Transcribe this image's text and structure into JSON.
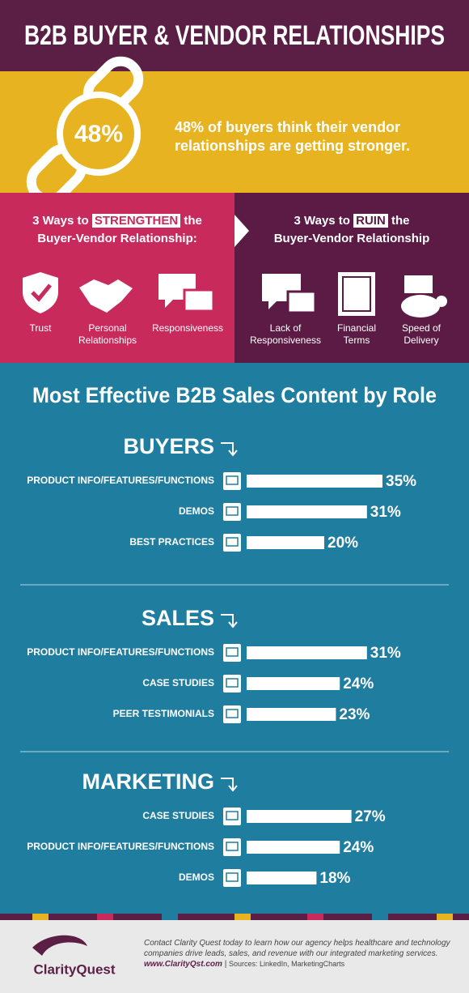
{
  "header": {
    "title": "B2B BUYER & VENDOR RELATIONSHIPS"
  },
  "stat": {
    "value": "48%",
    "text": "48% of buyers think their vendor relationships are getting stronger."
  },
  "strengthen": {
    "title_before": "3 Ways to",
    "title_highlight": "STRENGTHEN",
    "title_after": "the",
    "subtitle": "Buyer-Vendor Relationship:",
    "items": [
      "Trust",
      "Personal Relationships",
      "Responsiveness"
    ]
  },
  "ruin": {
    "title_before": "3 Ways to",
    "title_highlight": "RUIN",
    "title_after": "the",
    "subtitle": "Buyer-Vendor Relationship",
    "items": [
      "Lack of Responsiveness",
      "Financial Terms",
      "Speed of Delivery"
    ]
  },
  "section_title": "Most Effective B2B Sales Content by Role",
  "chart_data": [
    {
      "type": "bar",
      "title": "BUYERS",
      "categories": [
        "PRODUCT INFO/FEATURES/FUNCTIONS",
        "DEMOS",
        "BEST PRACTICES"
      ],
      "values": [
        35,
        31,
        20
      ],
      "value_labels": [
        "35%",
        "31%",
        "20%"
      ],
      "color": "#ffffff"
    },
    {
      "type": "bar",
      "title": "SALES",
      "categories": [
        "PRODUCT INFO/FEATURES/FUNCTIONS",
        "CASE STUDIES",
        "PEER TESTIMONIALS"
      ],
      "values": [
        31,
        24,
        23
      ],
      "value_labels": [
        "31%",
        "24%",
        "23%"
      ],
      "color": "#ffffff"
    },
    {
      "type": "bar",
      "title": "MARKETING",
      "categories": [
        "CASE STUDIES",
        "PRODUCT INFO/FEATURES/FUNCTIONS",
        "DEMOS"
      ],
      "values": [
        27,
        24,
        18
      ],
      "value_labels": [
        "27%",
        "24%",
        "18%"
      ],
      "color": "#ffffff"
    }
  ],
  "footer": {
    "text": "Contact Clarity Quest today to learn how our agency helps healthcare and technology companies drive leads, sales, and revenue with our integrated marketing services.",
    "url": "www.ClarityQst.com",
    "sources": "Sources: LinkedIn, MarketingCharts",
    "logo": "ClarityQuest"
  }
}
